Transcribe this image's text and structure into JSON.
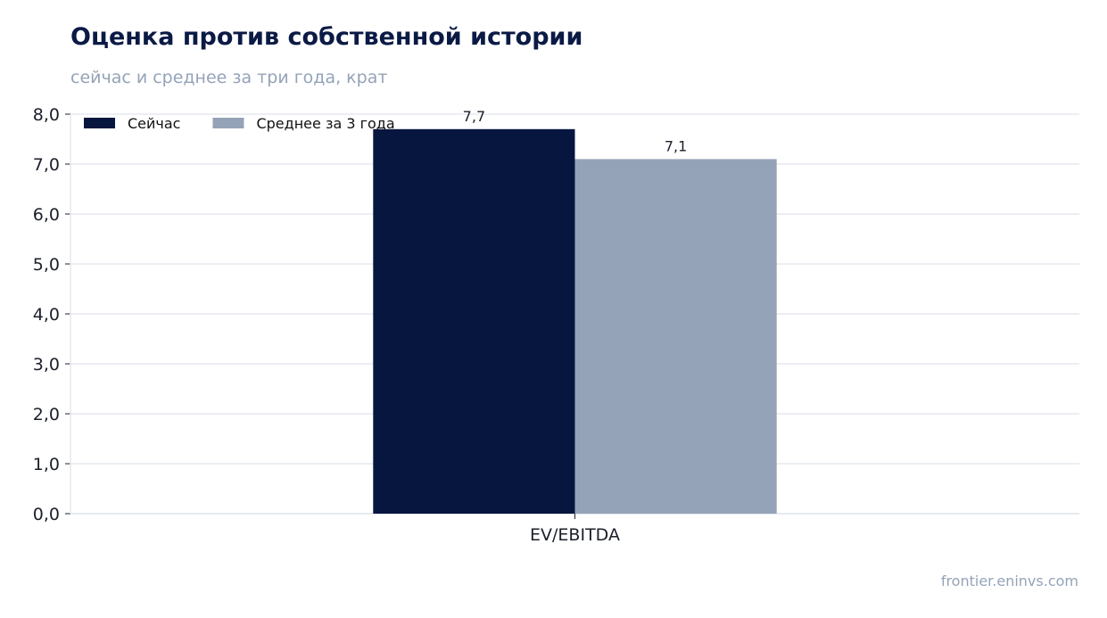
{
  "header": {
    "title": "Оценка против собственной истории",
    "subtitle": "сейчас и среднее за три года, крат"
  },
  "footer": {
    "source": "frontier.eninvs.com"
  },
  "chart_data": {
    "type": "bar",
    "title": "Оценка против собственной истории",
    "subtitle": "сейчас и среднее за три года, крат",
    "categories": [
      "EV/EBITDA"
    ],
    "series": [
      {
        "name": "Сейчас",
        "values": [
          7.7
        ],
        "value_labels": [
          "7,7"
        ],
        "color": "#07163f"
      },
      {
        "name": "Среднее за 3 года",
        "values": [
          7.1
        ],
        "value_labels": [
          "7,1"
        ],
        "color": "#95a3b8"
      }
    ],
    "ylim": [
      0,
      8
    ],
    "yticks": [
      0,
      1,
      2,
      3,
      4,
      5,
      6,
      7,
      8
    ],
    "ytick_labels": [
      "0,0",
      "1,0",
      "2,0",
      "3,0",
      "4,0",
      "5,0",
      "6,0",
      "7,0",
      "8,0"
    ],
    "xlabel": "",
    "ylabel": "",
    "grid": true,
    "legend_position": "top-left"
  }
}
